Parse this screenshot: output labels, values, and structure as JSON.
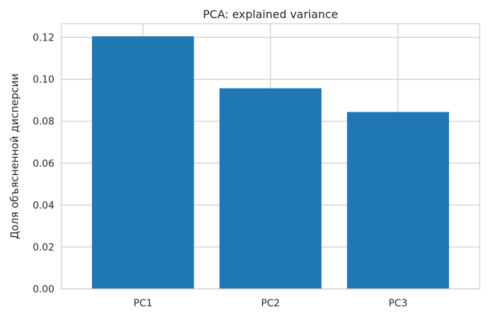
{
  "chart_data": {
    "type": "bar",
    "title": "PCA: explained variance",
    "xlabel": "",
    "ylabel": "Доля объясненной дисперсии",
    "categories": [
      "PC1",
      "PC2",
      "PC3"
    ],
    "values": [
      0.1205,
      0.0957,
      0.0844
    ],
    "ylim": [
      0,
      0.1265
    ],
    "yticks": [
      {
        "value": 0.0,
        "label": "0.00"
      },
      {
        "value": 0.02,
        "label": "0.02"
      },
      {
        "value": 0.04,
        "label": "0.04"
      },
      {
        "value": 0.06,
        "label": "0.06"
      },
      {
        "value": 0.08,
        "label": "0.08"
      },
      {
        "value": 0.1,
        "label": "0.10"
      },
      {
        "value": 0.12,
        "label": "0.12"
      }
    ],
    "grid": true,
    "legend": "none"
  },
  "colors": {
    "bar": "#1f77b4",
    "grid": "#cccccc",
    "frame": "#cccccc",
    "text": "#262626",
    "background": "#ffffff"
  }
}
